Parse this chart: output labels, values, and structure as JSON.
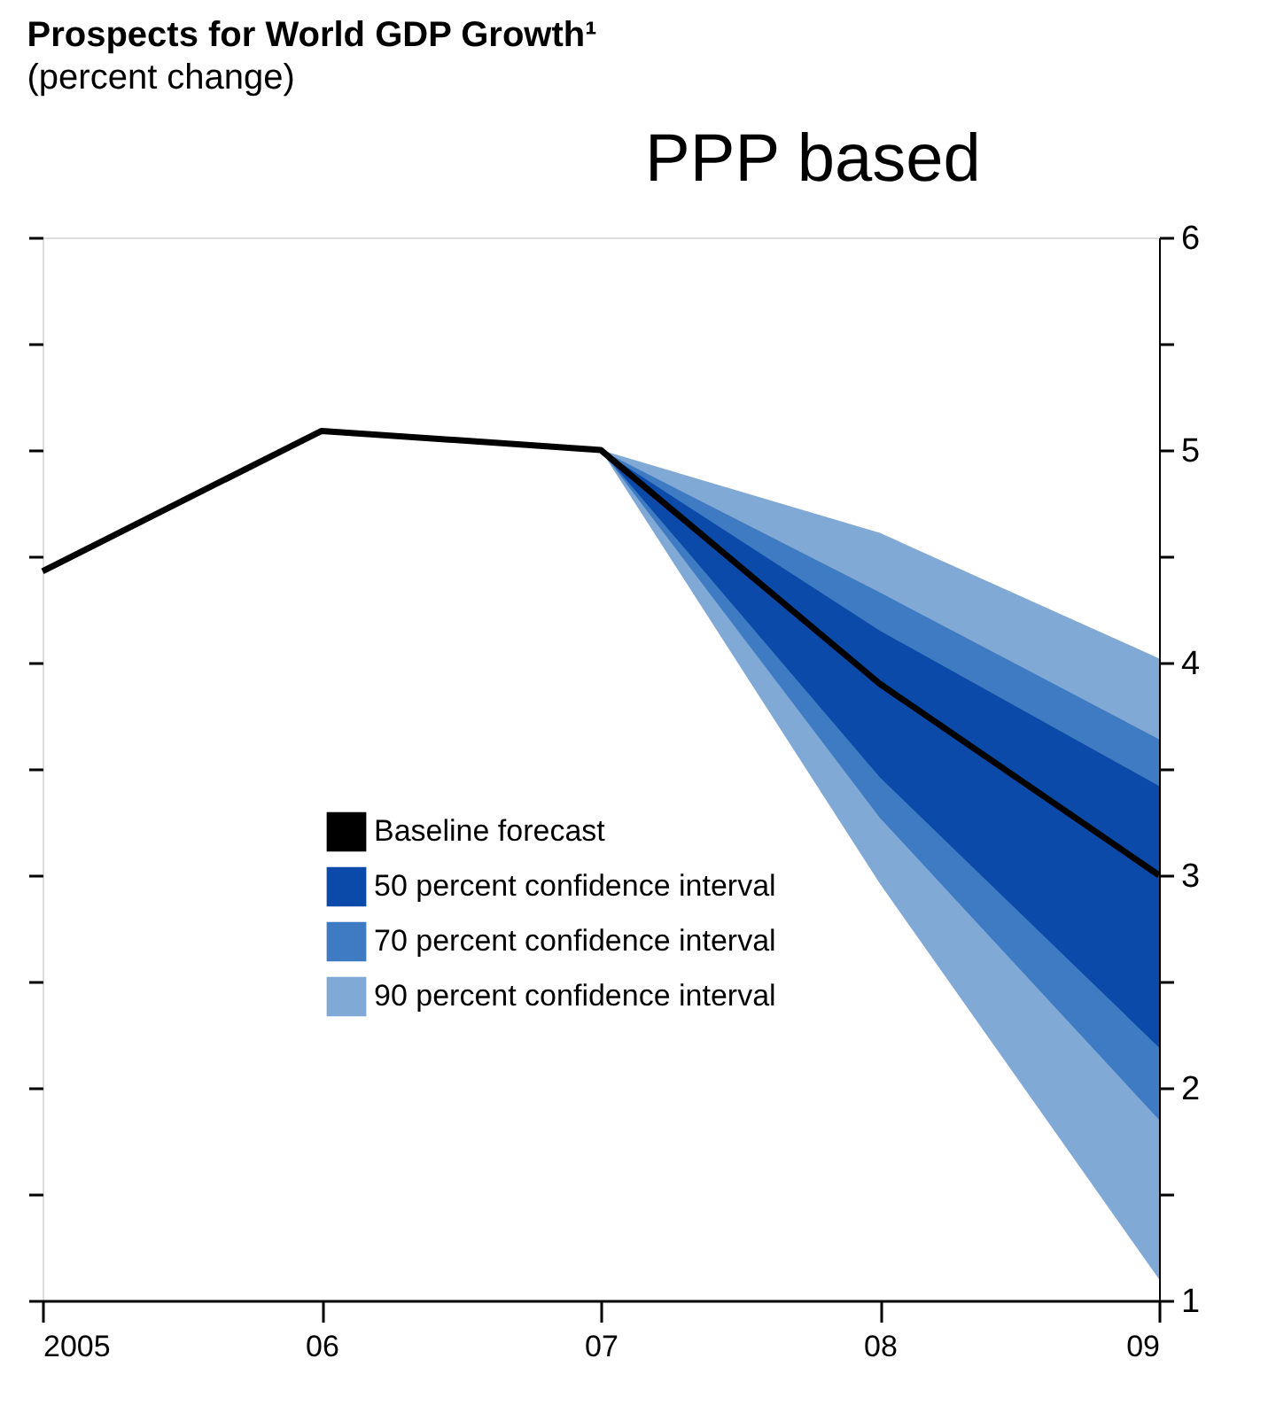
{
  "chart_data": {
    "type": "line",
    "title": "Prospects for World GDP Growth¹",
    "subtitle": "(percent change)",
    "annotations": [
      "PPP based"
    ],
    "xlim": [
      2005,
      2009
    ],
    "xticks": [
      {
        "value": 2005,
        "label": "2005"
      },
      {
        "value": 2006,
        "label": "06"
      },
      {
        "value": 2007,
        "label": "07"
      },
      {
        "value": 2008,
        "label": "08"
      },
      {
        "value": 2009,
        "label": "09"
      }
    ],
    "ylim": [
      1,
      6
    ],
    "yticks": [
      1,
      {
        "value": 1.5,
        "label": null
      },
      2,
      {
        "value": 2.5,
        "label": null
      },
      3,
      {
        "value": 3.5,
        "label": null
      },
      4,
      {
        "value": 4.5,
        "label": null
      },
      5,
      {
        "value": 5.5,
        "label": null
      },
      6
    ],
    "grid": false,
    "legend": "bottom left",
    "series": [
      {
        "name": "Baseline forecast",
        "color": "#000000",
        "x": [
          2005,
          2006,
          2007,
          2008,
          2009
        ],
        "values": [
          4.43,
          5.09,
          5.0,
          3.9,
          3.0
        ]
      },
      {
        "name": "50 percent confidence interval",
        "type": "area",
        "color": "#0b4aa8",
        "x": [
          2007,
          2008,
          2009
        ],
        "values": [
          null,
          null,
          null
        ],
        "lower": [
          5.0,
          3.46,
          2.19
        ],
        "upper": [
          5.0,
          4.15,
          3.42
        ]
      },
      {
        "name": "70 percent confidence interval",
        "type": "area",
        "color": "#3f7bc3",
        "x": [
          2007,
          2008,
          2009
        ],
        "values": [
          null,
          null,
          null
        ],
        "lower": [
          5.0,
          3.27,
          1.85
        ],
        "upper": [
          5.0,
          4.33,
          3.64
        ]
      },
      {
        "name": "90 percent confidence interval",
        "type": "area",
        "color": "#80a9d6",
        "x": [
          2007,
          2008,
          2009
        ],
        "values": [
          null,
          null,
          null
        ],
        "lower": [
          5.0,
          2.96,
          1.1
        ],
        "upper": [
          5.0,
          4.61,
          4.02
        ]
      }
    ]
  }
}
